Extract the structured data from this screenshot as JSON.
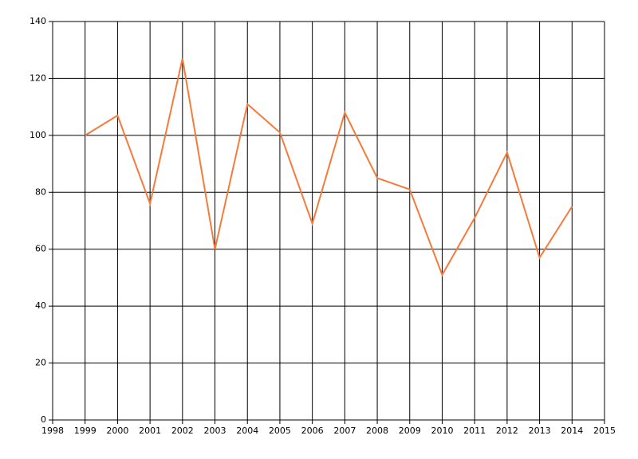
{
  "chart_data": {
    "type": "line",
    "x": [
      1999,
      2000,
      2001,
      2002,
      2003,
      2004,
      2005,
      2006,
      2007,
      2008,
      2009,
      2010,
      2011,
      2012,
      2013,
      2014
    ],
    "series": [
      {
        "color": "#f47b3b",
        "values": [
          100,
          107,
          76,
          127,
          60,
          111,
          101,
          69,
          108,
          85,
          81,
          51,
          71,
          94,
          57,
          75
        ]
      }
    ],
    "xlim": [
      1998,
      2015
    ],
    "xticks": [
      1998,
      1999,
      2000,
      2001,
      2002,
      2003,
      2004,
      2005,
      2006,
      2007,
      2008,
      2009,
      2010,
      2011,
      2012,
      2013,
      2014,
      2015
    ],
    "ylim": [
      0,
      140
    ],
    "yticks": [
      0,
      20,
      40,
      60,
      80,
      100,
      120,
      140
    ],
    "grid": true
  }
}
